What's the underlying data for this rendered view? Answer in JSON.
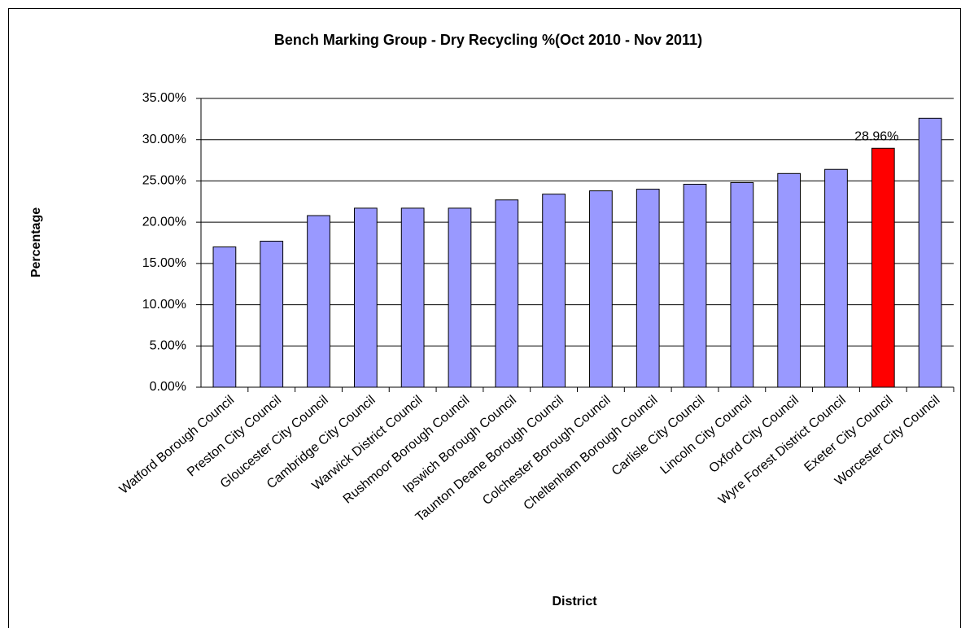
{
  "chart_data": {
    "type": "bar",
    "title": "Bench Marking Group - Dry Recycling %(Oct 2010 - Nov 2011)",
    "xlabel": "District",
    "ylabel": "Percentage",
    "categories": [
      "Watford Borough Council",
      "Preston City Council",
      "Gloucester City Council",
      "Cambridge City Council",
      "Warwick District Council",
      "Rushmoor Borough Council",
      "Ipswich Borough Council",
      "Taunton Deane Borough Council",
      "Colchester Borough Council",
      "Cheltenham Borough Council",
      "Carlisle City Council",
      "Lincoln City Council",
      "Oxford City Council",
      "Wyre Forest District Council",
      "Exeter City Council",
      "Worcester City Council"
    ],
    "values": [
      17.0,
      17.7,
      20.8,
      21.7,
      21.7,
      21.7,
      22.7,
      23.4,
      23.8,
      24.0,
      24.6,
      24.8,
      25.9,
      26.4,
      28.96,
      32.6
    ],
    "value_labels": [
      null,
      null,
      null,
      null,
      null,
      null,
      null,
      null,
      null,
      null,
      null,
      null,
      null,
      null,
      "28.96%",
      null
    ],
    "colors": [
      "#9999ff",
      "#9999ff",
      "#9999ff",
      "#9999ff",
      "#9999ff",
      "#9999ff",
      "#9999ff",
      "#9999ff",
      "#9999ff",
      "#9999ff",
      "#9999ff",
      "#9999ff",
      "#9999ff",
      "#9999ff",
      "#ff0000",
      "#9999ff"
    ],
    "ylim": [
      0,
      35
    ],
    "yticks": [
      {
        "value": 0,
        "label": "0.00%"
      },
      {
        "value": 5,
        "label": "5.00%"
      },
      {
        "value": 10,
        "label": "10.00%"
      },
      {
        "value": 15,
        "label": "15.00%"
      },
      {
        "value": 20,
        "label": "20.00%"
      },
      {
        "value": 25,
        "label": "25.00%"
      },
      {
        "value": 30,
        "label": "30.00%"
      },
      {
        "value": 35,
        "label": "35.00%"
      }
    ],
    "grid": true
  }
}
